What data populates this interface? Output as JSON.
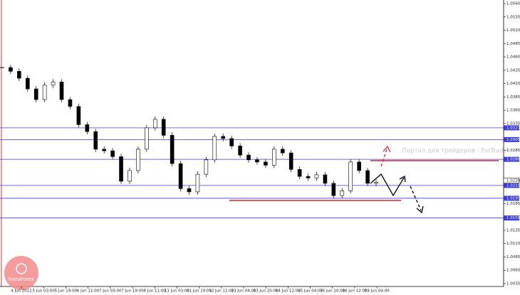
{
  "chart_data": {
    "type": "candlestick",
    "watermark": "Портал для трейдеров - ForTrader",
    "logo": "InstaForex",
    "close": [
      1.044,
      1.0433,
      1.042,
      1.04,
      1.038,
      1.0407,
      1.0413,
      1.038,
      1.0367,
      1.0333,
      1.032,
      1.0287,
      1.0284,
      1.0273,
      1.0227,
      1.0247,
      1.0287,
      1.0327,
      1.0343,
      1.0313,
      1.026,
      1.0213,
      1.0207,
      1.024,
      1.0267,
      1.0311,
      1.0307,
      1.0293,
      1.0276,
      1.0267,
      1.0263,
      1.0257,
      1.0287,
      1.028,
      1.0249,
      1.0236,
      1.0233,
      1.0239,
      1.0223,
      1.02,
      1.0209,
      1.0263,
      1.0247,
      1.0223,
      1.0225
    ],
    "time_labels": [
      "4 Jun 2022",
      "5 Jun 03:00",
      "5 Jun 19:00",
      "6 Jun 11:00",
      "7 Jun 03:00",
      "7 Jun 19:00",
      "8 Jun 11:00",
      "11 Jun 03:00",
      "11 Jun 19:00",
      "12 Jun 11:00",
      "13 Jun 04:00",
      "13 Jun 20:00",
      "14 Jun 12:00",
      "15 Jun 04:00",
      "15 Jun 20:00",
      "18 Jun 12:00",
      "19 Jun 04:00"
    ],
    "ylim": [
      1.0035,
      1.056
    ],
    "yticks": [
      {
        "value": 1.056,
        "label": "1.0560"
      },
      {
        "value": 1.0535,
        "label": "1.0535"
      },
      {
        "value": 1.051,
        "label": "1.0510"
      },
      {
        "value": 1.0485,
        "label": "1.0485"
      },
      {
        "value": 1.046,
        "label": "1.0460"
      },
      {
        "value": 1.0435,
        "label": "1.0435"
      },
      {
        "value": 1.041,
        "label": "1.0410"
      },
      {
        "value": 1.0385,
        "label": "1.0385"
      },
      {
        "value": 1.036,
        "label": "1.0360"
      },
      {
        "value": 1.0335,
        "label": "1.0335"
      },
      {
        "value": 1.0285,
        "label": "1.0285"
      },
      {
        "value": 1.0185,
        "label": "1.0185"
      },
      {
        "value": 1.0135,
        "label": "1.0135"
      },
      {
        "value": 1.011,
        "label": "1.0110"
      },
      {
        "value": 1.0085,
        "label": "1.0085"
      },
      {
        "value": 1.006,
        "label": "1.0060"
      },
      {
        "value": 1.0035,
        "label": "1.0035"
      }
    ],
    "levels": [
      {
        "value": 1.0327,
        "label": "1.0327"
      },
      {
        "value": 1.0305,
        "label": "1.0305"
      },
      {
        "value": 1.0268,
        "label": "1.0268"
      },
      {
        "value": 1.0219,
        "label": "1.0219"
      },
      {
        "value": 1.0195,
        "label": "1.0195"
      },
      {
        "value": 1.0158,
        "label": "1.0158"
      }
    ],
    "current": {
      "value": 1.0228,
      "label": "1.0228"
    },
    "level_color": "#3b3bd6",
    "candle_color": "#000000"
  }
}
